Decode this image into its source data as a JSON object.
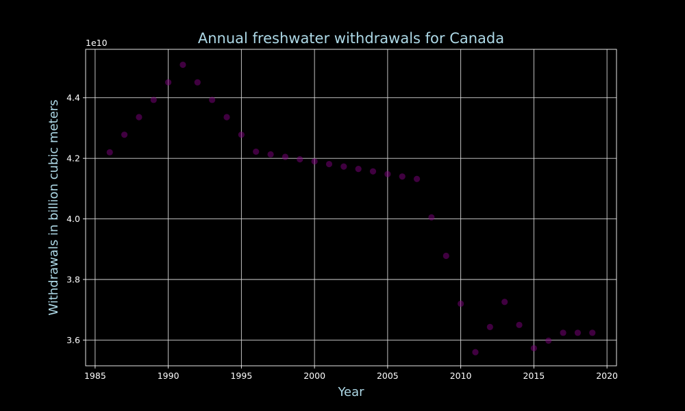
{
  "chart_data": {
    "type": "scatter",
    "title": "Annual freshwater withdrawals for Canada",
    "xlabel": "Year",
    "ylabel": "Withdrawals in billion cubic meters",
    "y_offset_label": "1e10",
    "xlim": [
      1984.35,
      2020.65
    ],
    "ylim": [
      35150000000.0,
      45600000000.0
    ],
    "x_ticks": [
      1985,
      1990,
      1995,
      2000,
      2005,
      2010,
      2015,
      2020
    ],
    "x_tick_labels": [
      "1985",
      "1990",
      "1995",
      "2000",
      "2005",
      "2010",
      "2015",
      "2020"
    ],
    "y_ticks": [
      36000000000.0,
      38000000000.0,
      40000000000.0,
      42000000000.0,
      44000000000.0
    ],
    "y_tick_labels": [
      "3.6",
      "3.8",
      "4.0",
      "4.2",
      "4.4"
    ],
    "grid": true,
    "marker_color": "#800080",
    "marker_opacity": 0.5,
    "x": [
      1986,
      1987,
      1988,
      1989,
      1990,
      1991,
      1992,
      1993,
      1994,
      1995,
      1996,
      1997,
      1998,
      1999,
      2000,
      2001,
      2002,
      2003,
      2004,
      2005,
      2006,
      2007,
      2008,
      2009,
      2010,
      2011,
      2012,
      2013,
      2014,
      2015,
      2016,
      2017,
      2018,
      2019
    ],
    "y": [
      42200000000.0,
      42780000000.0,
      43360000000.0,
      43930000000.0,
      44510000000.0,
      45090000000.0,
      44510000000.0,
      43930000000.0,
      43360000000.0,
      42780000000.0,
      42220000000.0,
      42130000000.0,
      42050000000.0,
      41970000000.0,
      41900000000.0,
      41810000000.0,
      41730000000.0,
      41650000000.0,
      41570000000.0,
      41480000000.0,
      41400000000.0,
      41320000000.0,
      40050000000.0,
      38780000000.0,
      37200000000.0,
      35600000000.0,
      36430000000.0,
      37260000000.0,
      36500000000.0,
      35730000000.0,
      35980000000.0,
      36240000000.0,
      36240000000.0,
      36240000000.0
    ]
  }
}
